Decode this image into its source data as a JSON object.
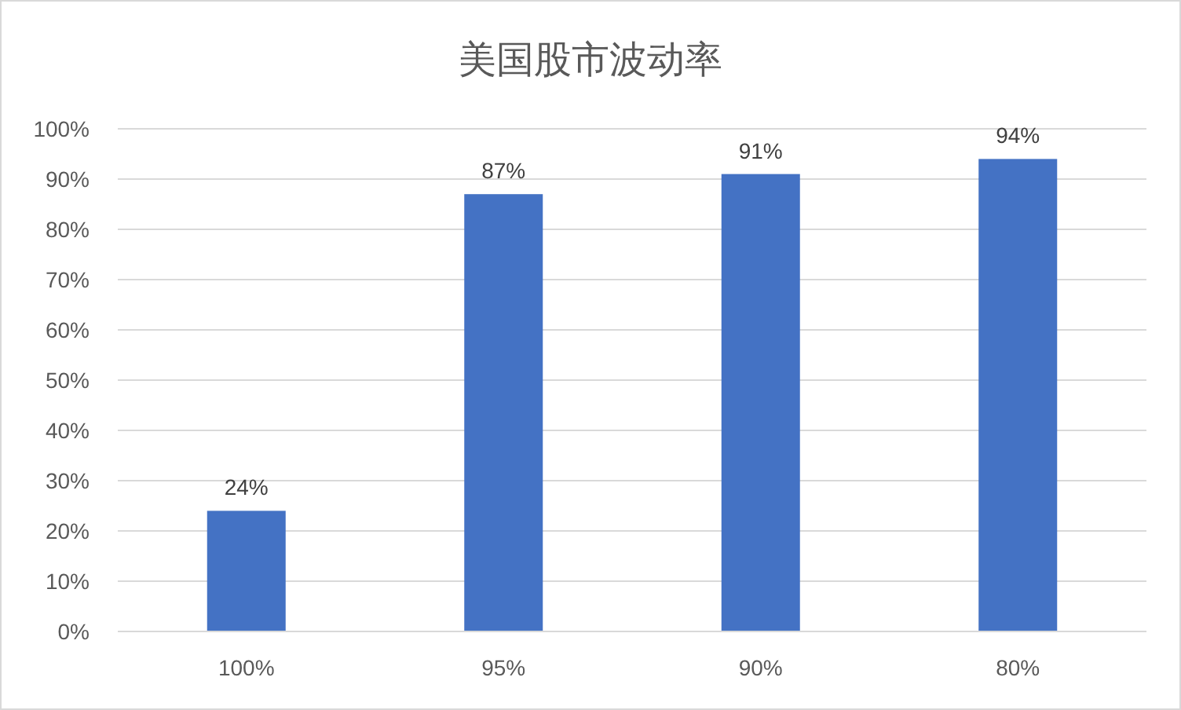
{
  "chart_data": {
    "type": "bar",
    "title": "美国股市波动率",
    "categories": [
      "100%",
      "95%",
      "90%",
      "80%"
    ],
    "series": [
      {
        "color": "#4472c4",
        "values": [
          24,
          87,
          91,
          94
        ]
      }
    ],
    "value_labels": [
      "24%",
      "87%",
      "91%",
      "94%"
    ],
    "ylim": [
      0,
      100
    ],
    "yticks": [
      {
        "value": 0,
        "label": "0%"
      },
      {
        "value": 10,
        "label": "10%"
      },
      {
        "value": 20,
        "label": "20%"
      },
      {
        "value": 30,
        "label": "30%"
      },
      {
        "value": 40,
        "label": "40%"
      },
      {
        "value": 50,
        "label": "50%"
      },
      {
        "value": 60,
        "label": "60%"
      },
      {
        "value": 70,
        "label": "70%"
      },
      {
        "value": 80,
        "label": "80%"
      },
      {
        "value": 90,
        "label": "90%"
      },
      {
        "value": 100,
        "label": "100%"
      }
    ],
    "grid": "y"
  }
}
